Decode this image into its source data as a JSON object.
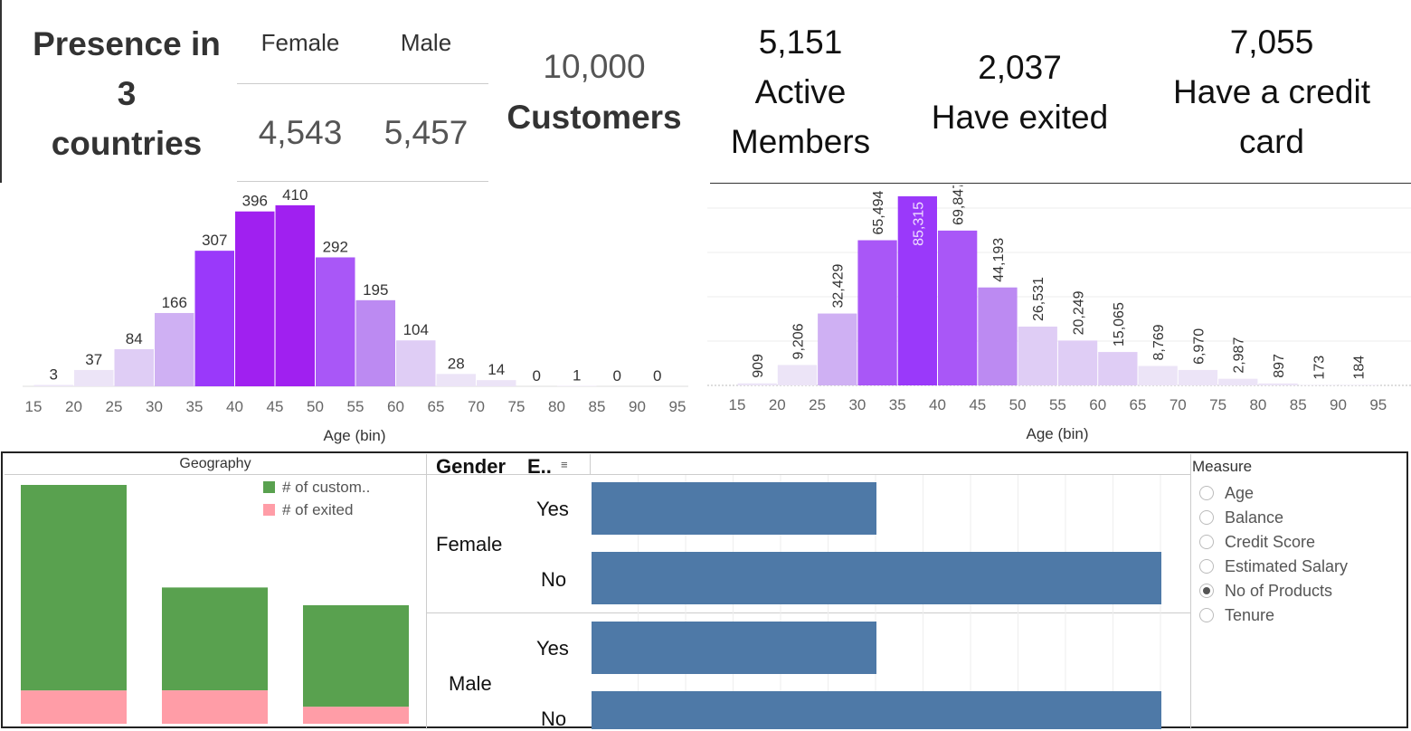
{
  "kpi": {
    "presence_line1": "Presence in",
    "presence_line2": "3",
    "presence_line3": "countries",
    "female_label": "Female",
    "male_label": "Male",
    "female_value": "4,543",
    "male_value": "5,457",
    "customers_value": "10,000",
    "customers_label": "Customers",
    "active_value": "5,151",
    "active_line1": "Active",
    "active_line2": "Members",
    "exited_value": "2,037",
    "exited_label": "Have exited",
    "credit_value": "7,055",
    "credit_line1": "Have a credit",
    "credit_line2": "card"
  },
  "colors": {
    "purple_scale": [
      "#ece4f7",
      "#dfcdf5",
      "#cfb0f3",
      "#bc8af2",
      "#a957f7",
      "#9a39fa",
      "#a020f0"
    ],
    "green": "#59a14f",
    "pink": "#ff9da7",
    "blue": "#4e79a7"
  },
  "chart_data": [
    {
      "type": "bar",
      "xlabel": "Age (bin)",
      "x_ticks": [
        "15",
        "20",
        "25",
        "30",
        "35",
        "40",
        "45",
        "50",
        "55",
        "60",
        "65",
        "70",
        "75",
        "80",
        "85",
        "90",
        "95"
      ],
      "categories": [
        "15",
        "20",
        "25",
        "30",
        "35",
        "40",
        "45",
        "50",
        "55",
        "60",
        "65",
        "70",
        "75",
        "80",
        "85",
        "90"
      ],
      "values": [
        3,
        37,
        84,
        166,
        307,
        396,
        410,
        292,
        195,
        104,
        28,
        14,
        0,
        1,
        0,
        0
      ],
      "labels": [
        "3",
        "37",
        "84",
        "166",
        "307",
        "396",
        "410",
        "292",
        "195",
        "104",
        "28",
        "14",
        "0",
        "1",
        "0",
        "0"
      ],
      "ylim": [
        0,
        420
      ],
      "grid": false
    },
    {
      "type": "bar",
      "xlabel": "Age (bin)",
      "x_ticks": [
        "15",
        "20",
        "25",
        "30",
        "35",
        "40",
        "45",
        "50",
        "55",
        "60",
        "65",
        "70",
        "75",
        "80",
        "85",
        "90",
        "95"
      ],
      "categories": [
        "15",
        "20",
        "25",
        "30",
        "35",
        "40",
        "45",
        "50",
        "55",
        "60",
        "65",
        "70",
        "75",
        "80",
        "85",
        "90"
      ],
      "values": [
        909,
        9206,
        32429,
        65494,
        85315,
        69847,
        44193,
        26531,
        20249,
        15065,
        8769,
        6970,
        2987,
        897,
        173,
        184
      ],
      "labels": [
        "909",
        "9,206",
        "32,429",
        "65,494",
        "85,315",
        "69,847",
        "44,193",
        "26,531",
        "20,249",
        "15,065",
        "8,769",
        "6,970",
        "2,987",
        "897",
        "173",
        "184"
      ],
      "ylim": [
        0,
        100000
      ],
      "grid": true
    },
    {
      "type": "bar",
      "stacked": true,
      "title": "Geography",
      "categories": [
        "",
        "",
        ""
      ],
      "series": [
        {
          "name": "# of custom..",
          "values": [
            5014,
            2509,
            2477
          ],
          "color": "#59a14f"
        },
        {
          "name": "# of exited",
          "values": [
            810,
            814,
            413
          ],
          "color": "#ff9da7"
        }
      ],
      "legend_position": "top-right"
    },
    {
      "type": "bar",
      "orientation": "horizontal",
      "header_gender": "Gender",
      "header_exited": "E..",
      "groups": [
        {
          "gender": "Female",
          "rows": [
            {
              "label": "Yes",
              "value": 1.5
            },
            {
              "label": "No",
              "value": 3.0
            }
          ]
        },
        {
          "gender": "Male",
          "rows": [
            {
              "label": "Yes",
              "value": 1.5
            },
            {
              "label": "No",
              "value": 3.0
            }
          ]
        }
      ],
      "xlim": [
        0,
        3.2
      ],
      "color": "#4e79a7"
    }
  ],
  "measure": {
    "title": "Measure",
    "options": [
      "Age",
      "Balance",
      "Credit Score",
      "Estimated Salary",
      "No of Products",
      "Tenure"
    ],
    "selected": "No of Products"
  }
}
